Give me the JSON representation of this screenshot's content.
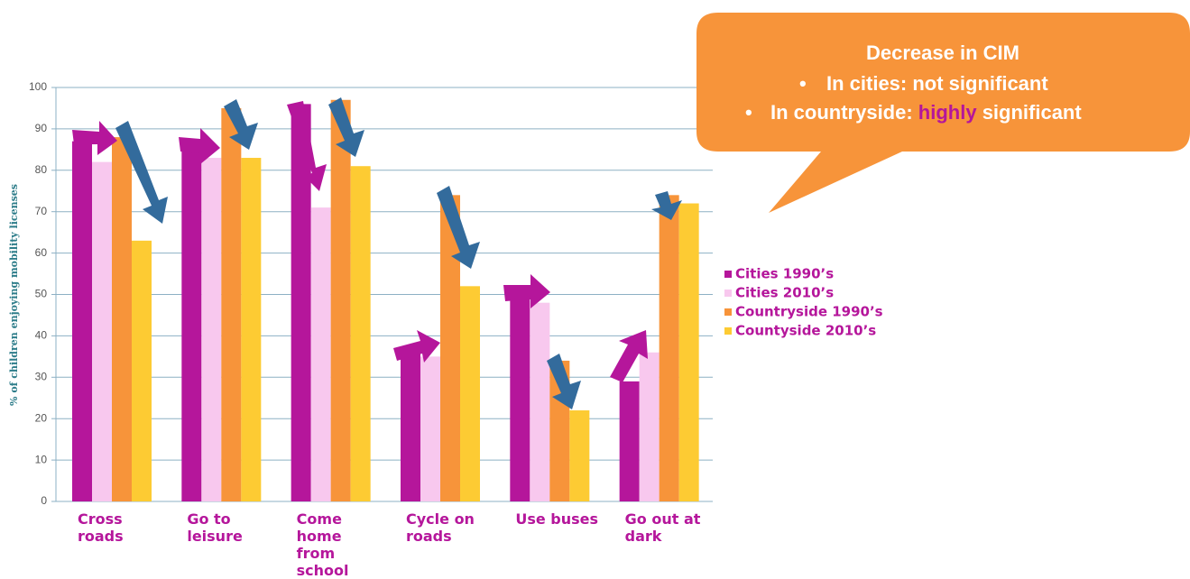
{
  "chart_data": {
    "type": "bar",
    "y_label": "% of children enjoying mobility licenses",
    "categories": [
      "Cross roads",
      "Go to leisure",
      "Come home from school",
      "Cycle on roads",
      "Use buses",
      "Go out at dark"
    ],
    "series": [
      {
        "name": "Cities 1990’s",
        "color": "#b5169b",
        "values": [
          87,
          85,
          96,
          36,
          51,
          29
        ]
      },
      {
        "name": "Cities 2010’s",
        "color": "#f8c8ee",
        "values": [
          82,
          83,
          71,
          35,
          48,
          36
        ]
      },
      {
        "name": "Countryside 1990’s",
        "color": "#f7943a",
        "values": [
          88,
          95,
          97,
          74,
          34,
          74
        ]
      },
      {
        "name": "Countyside 2010’s",
        "color": "#fdcb33",
        "values": [
          63,
          83,
          81,
          52,
          22,
          72
        ]
      }
    ],
    "ylim": [
      0,
      100
    ],
    "yticks": [
      0,
      10,
      20,
      30,
      40,
      50,
      60,
      70,
      80,
      90,
      100
    ],
    "grid": true,
    "legend": "right",
    "callout": {
      "title": "Decrease in CIM",
      "bullet1": "In cities: not significant",
      "bullet2": [
        "In countryside: ",
        "highly",
        " significant"
      ]
    }
  }
}
